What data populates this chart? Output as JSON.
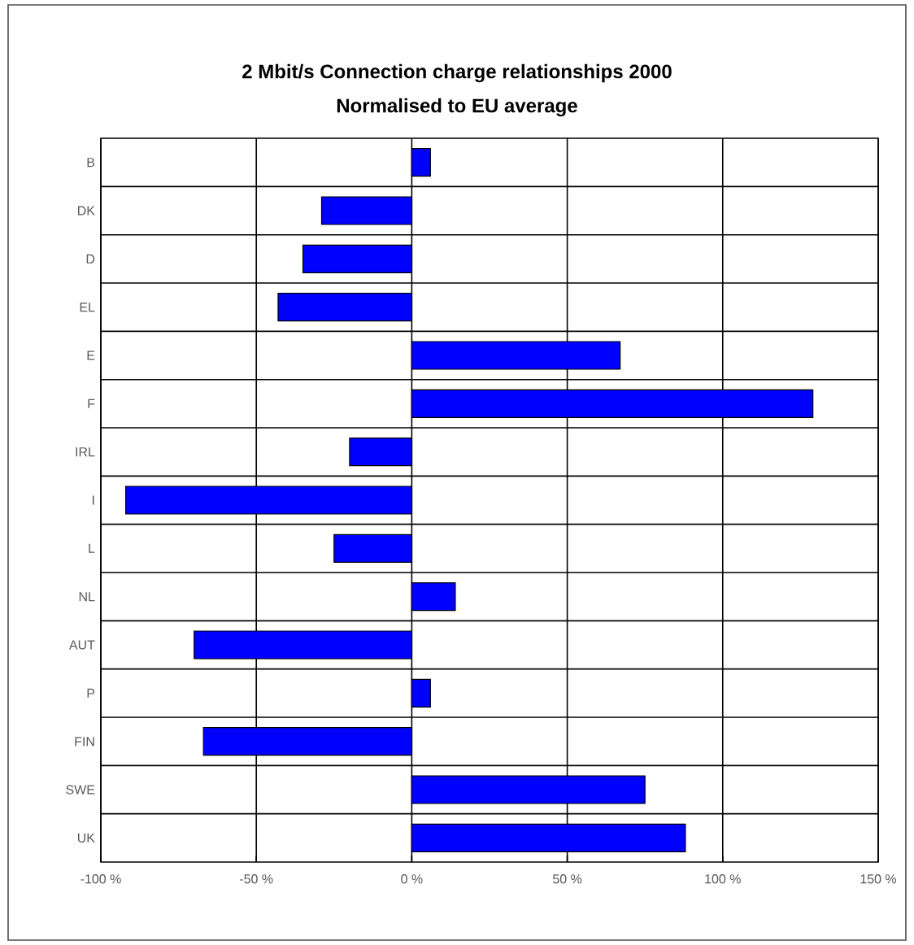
{
  "chart_data": {
    "type": "bar",
    "orientation": "horizontal",
    "title": "2 Mbit/s Connection charge relationships 2000",
    "subtitle": "Normalised to EU average",
    "categories": [
      "B",
      "DK",
      "D",
      "EL",
      "E",
      "F",
      "IRL",
      "I",
      "L",
      "NL",
      "AUT",
      "P",
      "FIN",
      "SWE",
      "UK"
    ],
    "values": [
      6,
      -29,
      -35,
      -43,
      67,
      129,
      -20,
      -92,
      -25,
      14,
      -70,
      6,
      -67,
      75,
      88
    ],
    "color": "#0000ff",
    "xlim": [
      -100,
      150
    ],
    "xticks": [
      {
        "value": -100,
        "label": "-100 %"
      },
      {
        "value": -50,
        "label": "-50 %"
      },
      {
        "value": 0,
        "label": "0 %"
      },
      {
        "value": 50,
        "label": "50 %"
      },
      {
        "value": 100,
        "label": "100 %"
      },
      {
        "value": 150,
        "label": "150 %"
      }
    ],
    "grid": true
  }
}
